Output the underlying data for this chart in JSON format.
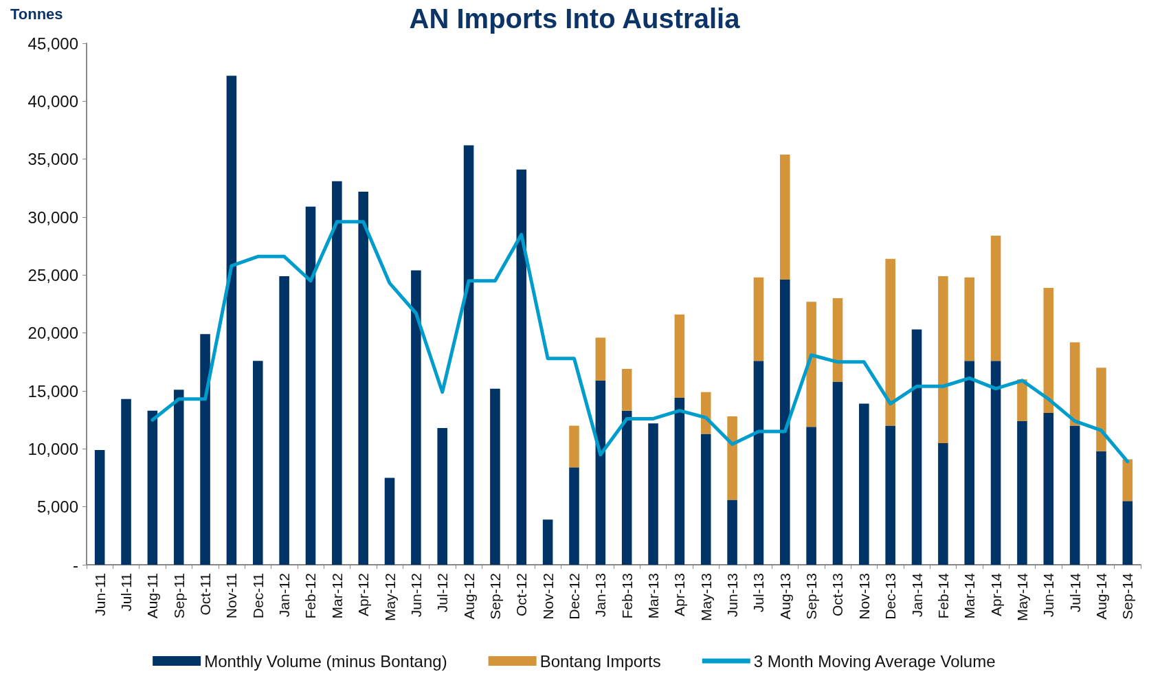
{
  "chart_data": {
    "type": "bar",
    "title": "AN Imports Into Australia",
    "ylabel": "Tonnes",
    "categories": [
      "Jun-11",
      "Jul-11",
      "Aug-11",
      "Sep-11",
      "Oct-11",
      "Nov-11",
      "Dec-11",
      "Jan-12",
      "Feb-12",
      "Mar-12",
      "Apr-12",
      "May-12",
      "Jun-12",
      "Jul-12",
      "Aug-12",
      "Sep-12",
      "Oct-12",
      "Nov-12",
      "Dec-12",
      "Jan-13",
      "Feb-13",
      "Mar-13",
      "Apr-13",
      "May-13",
      "Jun-13",
      "Jul-13",
      "Aug-13",
      "Sep-13",
      "Oct-13",
      "Nov-13",
      "Dec-13",
      "Jan-14",
      "Feb-14",
      "Mar-14",
      "Apr-14",
      "May-14",
      "Jun-14",
      "Jul-14",
      "Aug-14",
      "Sep-14"
    ],
    "stacked": true,
    "series": [
      {
        "name": "Monthly Volume (minus Bontang)",
        "color": "#003366",
        "values": [
          9900,
          14300,
          13300,
          15100,
          19900,
          42200,
          17600,
          24900,
          30900,
          33100,
          32200,
          7500,
          25400,
          11800,
          36200,
          15200,
          34100,
          3900,
          8400,
          15900,
          13300,
          12200,
          14400,
          11300,
          5600,
          17600,
          24600,
          11900,
          15800,
          13900,
          12000,
          20300,
          10500,
          17600,
          17600,
          12400,
          13100,
          12000,
          9800,
          5500
        ]
      },
      {
        "name": "Bontang Imports",
        "color": "#d4943a",
        "values": [
          null,
          null,
          null,
          null,
          null,
          null,
          null,
          null,
          null,
          null,
          null,
          null,
          null,
          null,
          null,
          null,
          null,
          null,
          3600,
          3700,
          3600,
          null,
          7200,
          3600,
          7200,
          7200,
          10800,
          10800,
          7200,
          null,
          14400,
          null,
          14400,
          7200,
          10800,
          3600,
          10800,
          7200,
          7200,
          3600
        ]
      },
      {
        "name": "3 Month Moving Average Volume",
        "color": "#009ccc",
        "type": "line",
        "values": [
          null,
          null,
          12500,
          14300,
          14300,
          25800,
          26600,
          26600,
          24500,
          29600,
          29600,
          24300,
          21700,
          14900,
          24500,
          24500,
          28500,
          17800,
          17800,
          9500,
          12600,
          12600,
          13300,
          12700,
          10400,
          11500,
          11500,
          18100,
          17500,
          17500,
          13900,
          15400,
          15400,
          16100,
          15200,
          15900,
          14300,
          12400,
          11600,
          8900
        ]
      }
    ],
    "ylim": [
      0,
      45000
    ],
    "yticks": [
      {
        "value": 0,
        "label": "-"
      },
      {
        "value": 5000,
        "label": "5,000"
      },
      {
        "value": 10000,
        "label": "10,000"
      },
      {
        "value": 15000,
        "label": "15,000"
      },
      {
        "value": 20000,
        "label": "20,000"
      },
      {
        "value": 25000,
        "label": "25,000"
      },
      {
        "value": 30000,
        "label": "30,000"
      },
      {
        "value": 35000,
        "label": "35,000"
      },
      {
        "value": 40000,
        "label": "40,000"
      },
      {
        "value": 45000,
        "label": "45,000"
      }
    ],
    "grid": false,
    "legend": "bottom",
    "marker": "none",
    "line_style": "solid"
  }
}
